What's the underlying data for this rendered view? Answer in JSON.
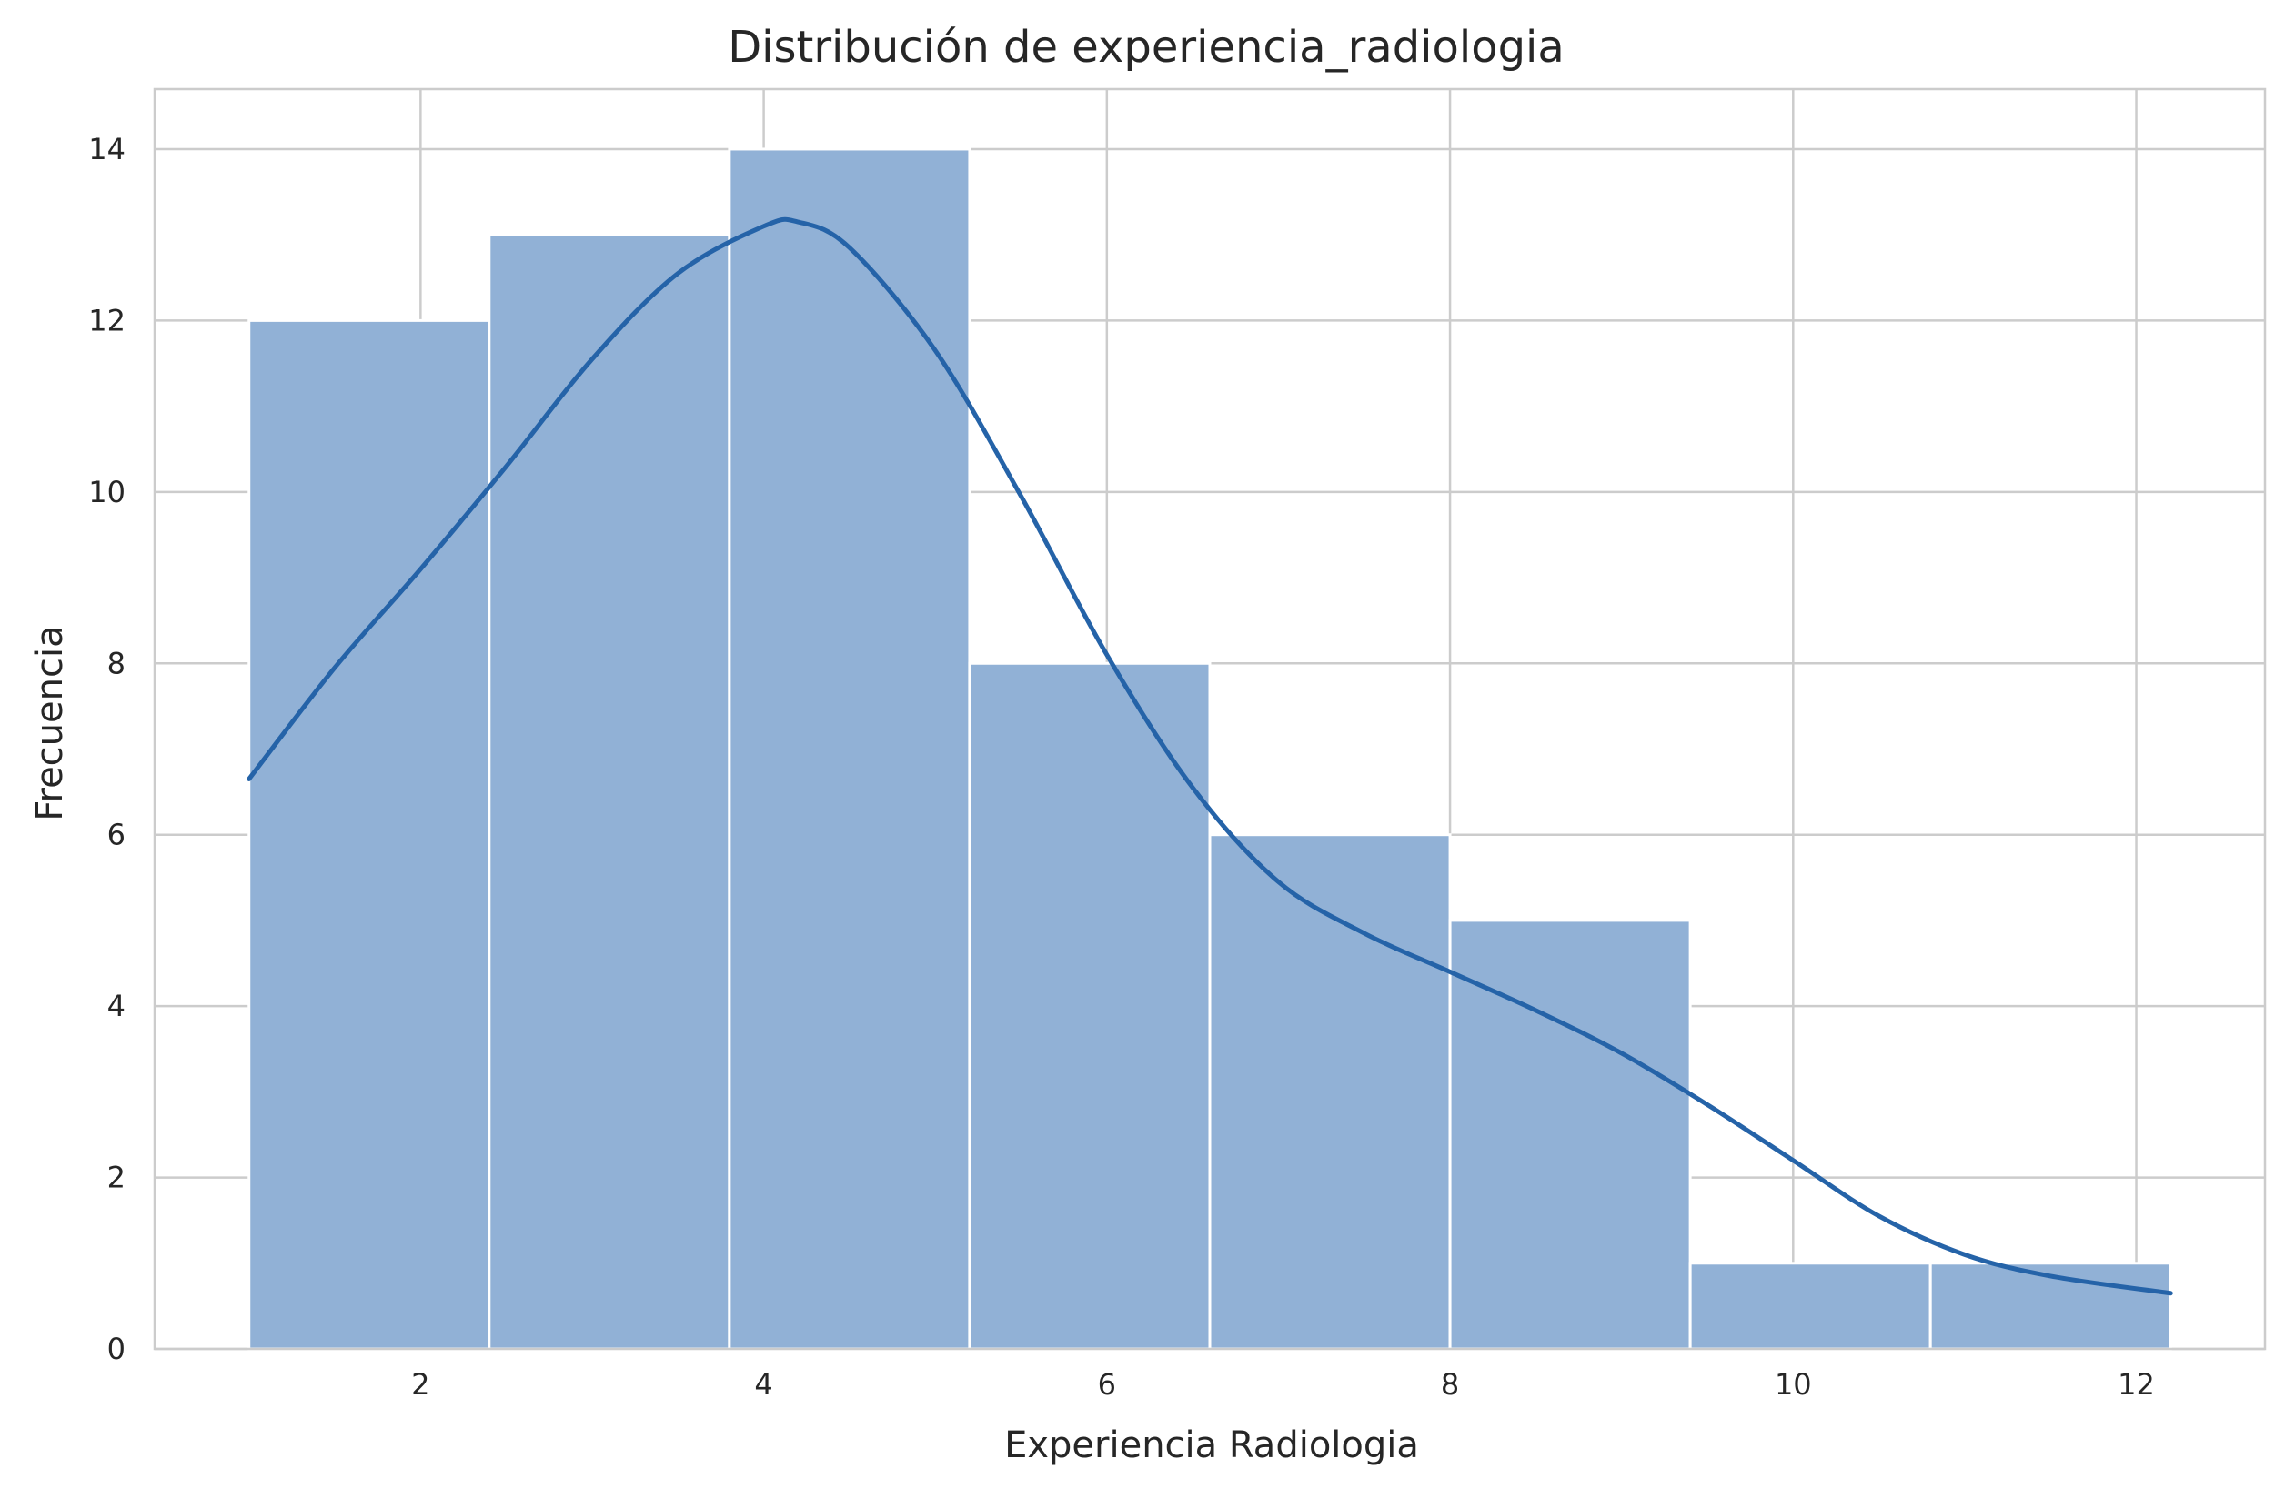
{
  "chart_data": {
    "type": "histogram",
    "title": "Distribución de experiencia_radiologia",
    "xlabel": "Experiencia Radiologia",
    "ylabel": "Frecuencia",
    "xlim": [
      0.45,
      12.75
    ],
    "ylim": [
      0,
      14.7
    ],
    "x_ticks": [
      2,
      4,
      6,
      8,
      10,
      12
    ],
    "y_ticks": [
      0,
      2,
      4,
      6,
      8,
      10,
      12,
      14
    ],
    "grid": true,
    "bins": [
      {
        "x0": 1.0,
        "x1": 2.4,
        "count": 12
      },
      {
        "x0": 2.4,
        "x1": 3.8,
        "count": 13
      },
      {
        "x0": 3.8,
        "x1": 5.2,
        "count": 14
      },
      {
        "x0": 5.2,
        "x1": 6.6,
        "count": 8
      },
      {
        "x0": 6.6,
        "x1": 8.0,
        "count": 6
      },
      {
        "x0": 8.0,
        "x1": 9.4,
        "count": 5
      },
      {
        "x0": 9.4,
        "x1": 10.8,
        "count": 1
      },
      {
        "x0": 10.8,
        "x1": 12.2,
        "count": 1
      }
    ],
    "kde": {
      "x": [
        1.0,
        1.5,
        2.0,
        2.5,
        3.0,
        3.5,
        4.0,
        4.2,
        4.5,
        5.0,
        5.5,
        6.0,
        6.5,
        7.0,
        7.5,
        8.0,
        8.5,
        9.0,
        9.5,
        10.0,
        10.5,
        11.0,
        11.5,
        12.2
      ],
      "y": [
        6.65,
        7.95,
        9.1,
        10.3,
        11.55,
        12.55,
        13.1,
        13.15,
        12.85,
        11.65,
        9.95,
        8.1,
        6.55,
        5.45,
        4.85,
        4.4,
        3.95,
        3.45,
        2.85,
        2.2,
        1.55,
        1.1,
        0.85,
        0.65
      ]
    },
    "colors": {
      "bar_fill": "#91b1d6",
      "bar_edge": "#ffffff",
      "kde_line": "#2563a8",
      "grid": "#cccccc",
      "spine": "#cccccc"
    }
  }
}
